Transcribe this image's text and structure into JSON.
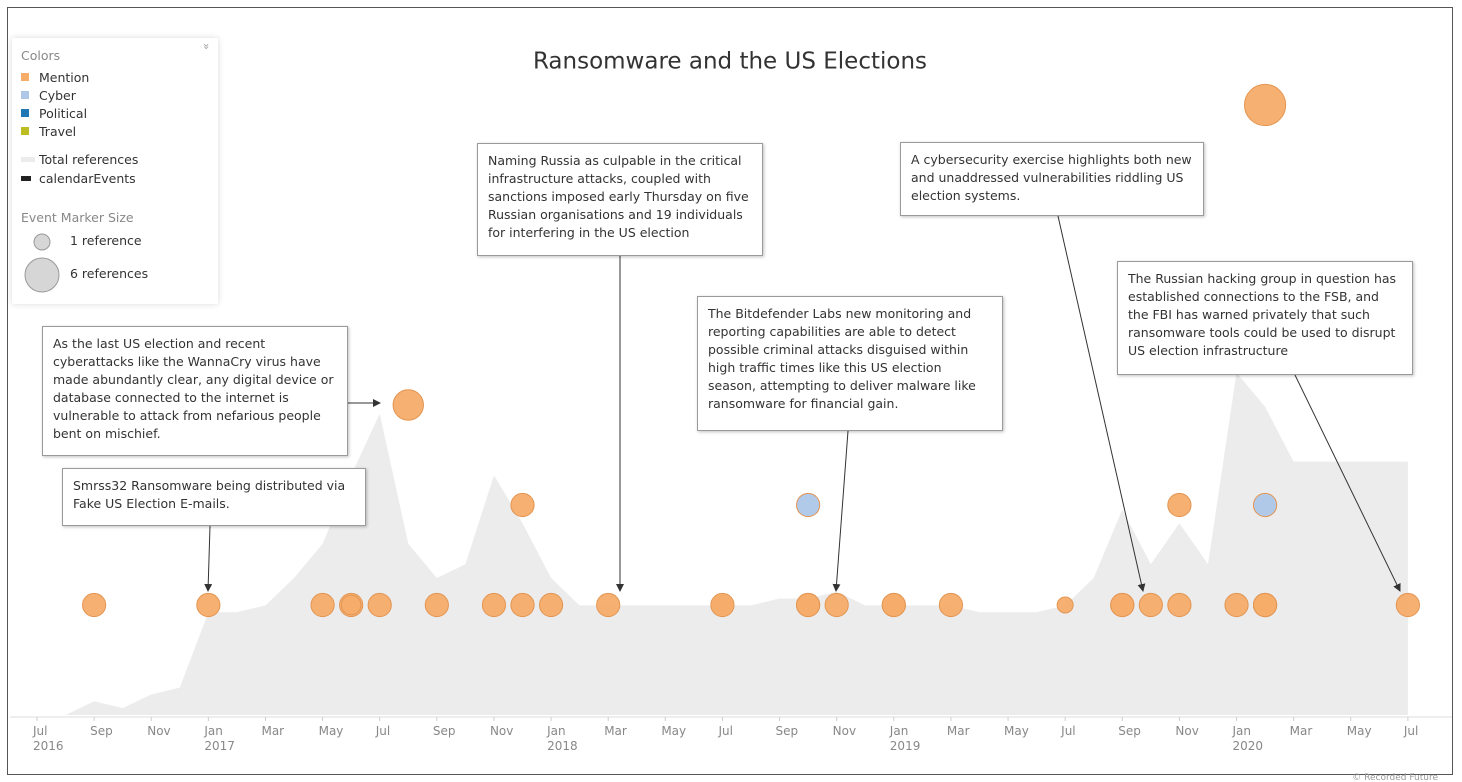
{
  "chart_data": {
    "type": "timeline",
    "title": "Ransomware and the US Elections",
    "legend": {
      "colors_title": "Colors",
      "size_title": "Event Marker Size",
      "calendar_label": "calendarEvents",
      "sizes": [
        {
          "size": 1,
          "label": "1 reference"
        },
        {
          "size": 6,
          "label": "6 references"
        }
      ]
    },
    "categories": [
      {
        "name": "Mention",
        "color": "#f6ad6a"
      },
      {
        "name": "Cyber",
        "color": "#aec7e8"
      },
      {
        "name": "Political",
        "color": "#1f77b4"
      },
      {
        "name": "Travel",
        "color": "#bcbd22"
      }
    ],
    "area": {
      "name": "Total references",
      "color": "#ececec",
      "x": [
        "2016-07",
        "2016-08",
        "2016-09",
        "2016-10",
        "2016-11",
        "2016-12",
        "2017-01",
        "2017-02",
        "2017-03",
        "2017-04",
        "2017-05",
        "2017-06",
        "2017-07",
        "2017-08",
        "2017-09",
        "2017-10",
        "2017-11",
        "2017-12",
        "2018-01",
        "2018-02",
        "2018-03",
        "2018-04",
        "2018-05",
        "2018-06",
        "2018-07",
        "2018-08",
        "2018-09",
        "2018-10",
        "2018-11",
        "2018-12",
        "2019-01",
        "2019-02",
        "2019-03",
        "2019-04",
        "2019-05",
        "2019-06",
        "2019-07",
        "2019-08",
        "2019-09",
        "2019-10",
        "2019-11",
        "2019-12",
        "2020-01",
        "2020-02",
        "2020-03",
        "2020-04",
        "2020-05",
        "2020-06",
        "2020-07"
      ],
      "values": [
        0,
        0,
        2,
        1,
        3,
        4,
        15,
        15,
        16,
        20,
        25,
        35,
        44,
        25,
        20,
        22,
        35,
        28,
        20,
        16,
        16,
        16,
        16,
        16,
        16,
        16,
        17,
        17,
        18,
        16,
        16,
        16,
        16,
        15,
        15,
        15,
        16,
        20,
        30,
        22,
        28,
        22,
        50,
        45,
        37,
        37,
        37,
        37,
        37
      ]
    },
    "ylim": [
      0,
      100
    ],
    "events": [
      {
        "x": "2016-09",
        "level": 0,
        "size": 3,
        "category": "Mention"
      },
      {
        "x": "2017-01",
        "level": 0,
        "size": 3,
        "category": "Mention"
      },
      {
        "x": "2017-05",
        "level": 0,
        "size": 3,
        "category": "Mention"
      },
      {
        "x": "2017-06",
        "level": 0,
        "size": 3,
        "category": "Mention"
      },
      {
        "x": "2017-06",
        "level": 0,
        "size": 2,
        "category": "Mention"
      },
      {
        "x": "2017-07",
        "level": 0,
        "size": 3,
        "category": "Mention"
      },
      {
        "x": "2017-09",
        "level": 0,
        "size": 3,
        "category": "Mention"
      },
      {
        "x": "2017-11",
        "level": 0,
        "size": 3,
        "category": "Mention"
      },
      {
        "x": "2017-12",
        "level": 0,
        "size": 3,
        "category": "Mention"
      },
      {
        "x": "2018-01",
        "level": 0,
        "size": 3,
        "category": "Mention"
      },
      {
        "x": "2018-03",
        "level": 0,
        "size": 3,
        "category": "Mention"
      },
      {
        "x": "2018-07",
        "level": 0,
        "size": 2,
        "category": "Mention"
      },
      {
        "x": "2018-07",
        "level": 0,
        "size": 3,
        "category": "Mention"
      },
      {
        "x": "2018-10",
        "level": 0,
        "size": 3,
        "category": "Mention"
      },
      {
        "x": "2018-10",
        "level": 0,
        "size": 3,
        "category": "Mention"
      },
      {
        "x": "2018-11",
        "level": 0,
        "size": 3,
        "category": "Mention"
      },
      {
        "x": "2019-01",
        "level": 0,
        "size": 3,
        "category": "Mention"
      },
      {
        "x": "2019-01",
        "level": 0,
        "size": 3,
        "category": "Mention"
      },
      {
        "x": "2019-03",
        "level": 0,
        "size": 3,
        "category": "Mention"
      },
      {
        "x": "2019-07",
        "level": 0,
        "size": 1,
        "category": "Mention"
      },
      {
        "x": "2019-09",
        "level": 0,
        "size": 3,
        "category": "Mention"
      },
      {
        "x": "2019-09",
        "level": 0,
        "size": 3,
        "category": "Mention"
      },
      {
        "x": "2019-10",
        "level": 0,
        "size": 3,
        "category": "Mention"
      },
      {
        "x": "2019-11",
        "level": 0,
        "size": 3,
        "category": "Mention"
      },
      {
        "x": "2020-01",
        "level": 0,
        "size": 3,
        "category": "Mention"
      },
      {
        "x": "2020-02",
        "level": 0,
        "size": 3,
        "category": "Mention"
      },
      {
        "x": "2020-02",
        "level": 0,
        "size": 3,
        "category": "Mention"
      },
      {
        "x": "2020-02",
        "level": 0,
        "size": 3,
        "category": "Mention"
      },
      {
        "x": "2020-07",
        "level": 0,
        "size": 3,
        "category": "Mention"
      },
      {
        "x": "2017-12",
        "level": 1,
        "size": 3,
        "category": "Mention"
      },
      {
        "x": "2018-10",
        "level": 1,
        "size": 3,
        "category": "Cyber"
      },
      {
        "x": "2019-11",
        "level": 1,
        "size": 3,
        "category": "Mention"
      },
      {
        "x": "2020-02",
        "level": 1,
        "size": 3,
        "category": "Cyber"
      },
      {
        "x": "2017-08",
        "level": 2,
        "size": 5,
        "category": "Mention"
      },
      {
        "x": "2020-02",
        "level": 5,
        "size": 8,
        "category": "Mention"
      }
    ],
    "xticks": [
      {
        "value": "2016-07",
        "label": "Jul"
      },
      {
        "value": "2016-09",
        "label": "Sep"
      },
      {
        "value": "2016-11",
        "label": "Nov"
      },
      {
        "value": "2017-01",
        "label": "Jan"
      },
      {
        "value": "2017-03",
        "label": "Mar"
      },
      {
        "value": "2017-05",
        "label": "May"
      },
      {
        "value": "2017-07",
        "label": "Jul"
      },
      {
        "value": "2017-09",
        "label": "Sep"
      },
      {
        "value": "2017-11",
        "label": "Nov"
      },
      {
        "value": "2018-01",
        "label": "Jan"
      },
      {
        "value": "2018-03",
        "label": "Mar"
      },
      {
        "value": "2018-05",
        "label": "May"
      },
      {
        "value": "2018-07",
        "label": "Jul"
      },
      {
        "value": "2018-09",
        "label": "Sep"
      },
      {
        "value": "2018-11",
        "label": "Nov"
      },
      {
        "value": "2019-01",
        "label": "Jan"
      },
      {
        "value": "2019-03",
        "label": "Mar"
      },
      {
        "value": "2019-05",
        "label": "May"
      },
      {
        "value": "2019-07",
        "label": "Jul"
      },
      {
        "value": "2019-09",
        "label": "Sep"
      },
      {
        "value": "2019-11",
        "label": "Nov"
      },
      {
        "value": "2020-01",
        "label": "Jan"
      },
      {
        "value": "2020-03",
        "label": "Mar"
      },
      {
        "value": "2020-05",
        "label": "May"
      },
      {
        "value": "2020-07",
        "label": "Jul"
      }
    ],
    "year_labels": [
      {
        "value": "2016-07",
        "label": "2016"
      },
      {
        "value": "2017-01",
        "label": "2017"
      },
      {
        "value": "2018-01",
        "label": "2018"
      },
      {
        "value": "2019-01",
        "label": "2019"
      },
      {
        "value": "2020-01",
        "label": "2020"
      }
    ],
    "annotations": [
      "As the last US election and recent cyberattacks like the WannaCry virus have made abundantly clear, any digital device or database connected to the internet is vulnerable to attack from nefarious people bent on mischief.",
      "Smrss32 Ransomware being distributed via Fake US Election E-mails.",
      "Naming Russia as culpable in the critical infrastructure attacks, coupled with sanctions imposed early Thursday on five Russian organisations and 19 individuals for interfering in the US election",
      "The Bitdefender Labs new monitoring and reporting capabilities are able to detect possible criminal attacks disguised within high traffic times like this US election season, attempting to deliver malware like ransomware for financial gain.",
      "A cybersecurity exercise highlights both new and unaddressed vulnerabilities riddling US election systems.",
      "The Russian hacking group in question has established connections to the FSB, and the FBI has warned privately that such ransomware tools could be used to disrupt US election infrastructure"
    ],
    "credit": "© Recorded Future"
  }
}
